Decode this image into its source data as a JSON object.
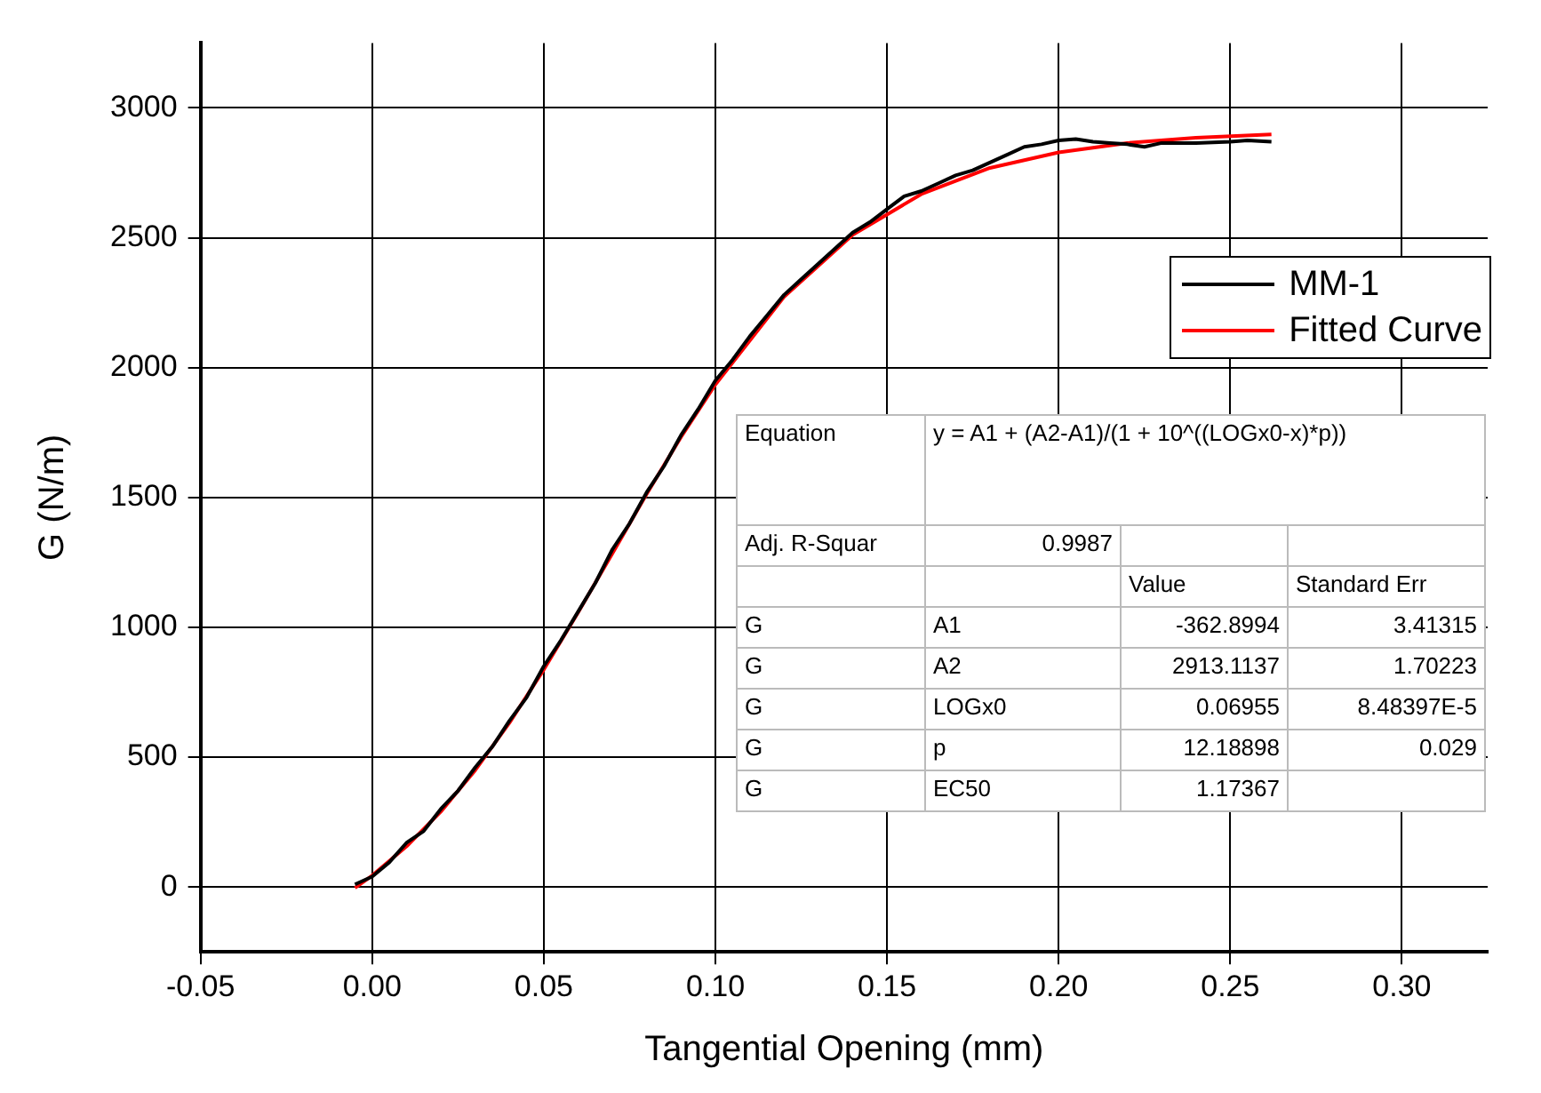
{
  "chart_data": {
    "type": "line",
    "xlabel": "Tangential Opening (mm)",
    "ylabel": "G (N/m)",
    "xlim": [
      -0.05,
      0.325
    ],
    "xticks": [
      {
        "value": -0.05,
        "label": "-0.05"
      },
      {
        "value": 0,
        "label": "0.00"
      },
      {
        "value": 0.05,
        "label": "0.05"
      },
      {
        "value": 0.1,
        "label": "0.10"
      },
      {
        "value": 0.15,
        "label": "0.15"
      },
      {
        "value": 0.2,
        "label": "0.20"
      },
      {
        "value": 0.25,
        "label": "0.25"
      },
      {
        "value": 0.3,
        "label": "0.30"
      }
    ],
    "ylim": [
      -250,
      3250
    ],
    "yticks": [
      0,
      500,
      1000,
      1500,
      2000,
      2500,
      3000
    ],
    "grid": true,
    "legend": "top right",
    "marker": "none",
    "line_style": "solid",
    "series": [
      {
        "name": "MM-1",
        "color": "#000000",
        "x": [
          -0.005,
          0,
          0.005,
          0.01,
          0.015,
          0.02,
          0.025,
          0.03,
          0.035,
          0.04,
          0.045,
          0.05,
          0.055,
          0.06,
          0.065,
          0.07,
          0.075,
          0.08,
          0.085,
          0.09,
          0.095,
          0.1,
          0.105,
          0.11,
          0.115,
          0.12,
          0.125,
          0.13,
          0.135,
          0.14,
          0.145,
          0.15,
          0.155,
          0.16,
          0.165,
          0.17,
          0.175,
          0.18,
          0.185,
          0.19,
          0.195,
          0.2,
          0.205,
          0.21,
          0.215,
          0.22,
          0.225,
          0.23,
          0.24,
          0.25,
          0.255,
          0.262
        ],
        "values": [
          10,
          40,
          95,
          170,
          215,
          300,
          370,
          460,
          540,
          640,
          730,
          850,
          950,
          1060,
          1170,
          1300,
          1400,
          1520,
          1620,
          1740,
          1840,
          1950,
          2030,
          2120,
          2200,
          2280,
          2340,
          2400,
          2460,
          2520,
          2560,
          2610,
          2660,
          2680,
          2710,
          2740,
          2760,
          2790,
          2820,
          2850,
          2860,
          2875,
          2880,
          2870,
          2865,
          2860,
          2850,
          2865,
          2865,
          2870,
          2875,
          2870
        ]
      },
      {
        "name": "Fitted Curve",
        "color": "#ff0000",
        "x": [
          -0.005,
          0,
          0.01,
          0.02,
          0.03,
          0.04,
          0.05,
          0.06,
          0.07,
          0.08,
          0.09,
          0.1,
          0.12,
          0.14,
          0.16,
          0.18,
          0.2,
          0.22,
          0.24,
          0.262
        ],
        "values": [
          -3,
          44,
          156,
          290,
          449,
          632,
          837,
          1057,
          1285,
          1514,
          1733,
          1935,
          2273,
          2511,
          2668,
          2769,
          2829,
          2865,
          2885,
          2898
        ]
      }
    ],
    "annotations": [
      "Equation",
      "y = A1 + (A2-A1)/(1 + 10^((LOGx0-x)*p))",
      "Adj. R-Squar",
      "0.9987",
      "Value",
      "Standard Err",
      "G",
      "A1",
      "-362.8994",
      "3.41315",
      "G",
      "A2",
      "2913.1137",
      "1.70223",
      "G",
      "LOGx0",
      "0.06955",
      "8.48397E-5",
      "G",
      "p",
      "12.18898",
      "0.029",
      "G",
      "EC50",
      "1.17367"
    ]
  }
}
